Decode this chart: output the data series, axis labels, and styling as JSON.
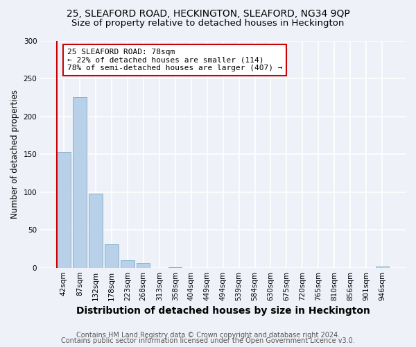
{
  "title1": "25, SLEAFORD ROAD, HECKINGTON, SLEAFORD, NG34 9QP",
  "title2": "Size of property relative to detached houses in Heckington",
  "xlabel": "Distribution of detached houses by size in Heckington",
  "ylabel": "Number of detached properties",
  "footnote1": "Contains HM Land Registry data © Crown copyright and database right 2024.",
  "footnote2": "Contains public sector information licensed under the Open Government Licence v3.0.",
  "bin_labels": [
    "42sqm",
    "87sqm",
    "132sqm",
    "178sqm",
    "223sqm",
    "268sqm",
    "313sqm",
    "358sqm",
    "404sqm",
    "449sqm",
    "494sqm",
    "539sqm",
    "584sqm",
    "630sqm",
    "675sqm",
    "720sqm",
    "765sqm",
    "810sqm",
    "856sqm",
    "901sqm",
    "946sqm"
  ],
  "bar_heights": [
    153,
    226,
    98,
    31,
    10,
    6,
    0,
    1,
    0,
    0,
    0,
    0,
    0,
    0,
    0,
    0,
    0,
    0,
    0,
    0,
    2
  ],
  "bar_color": "#b8d0e8",
  "bar_edge_color": "#7aaec8",
  "vline_color": "#cc0000",
  "vline_x": 0.0,
  "annotation_text": "25 SLEAFORD ROAD: 78sqm\n← 22% of detached houses are smaller (114)\n78% of semi-detached houses are larger (407) →",
  "annotation_box_color": "#ffffff",
  "annotation_box_edge": "#cc0000",
  "ylim": [
    0,
    300
  ],
  "yticks": [
    0,
    50,
    100,
    150,
    200,
    250,
    300
  ],
  "background_color": "#eef2f8",
  "grid_color": "#ffffff",
  "title1_fontsize": 10,
  "title2_fontsize": 9.5,
  "xlabel_fontsize": 10,
  "ylabel_fontsize": 8.5,
  "tick_fontsize": 7.5,
  "annotation_fontsize": 8,
  "footnote_fontsize": 7
}
